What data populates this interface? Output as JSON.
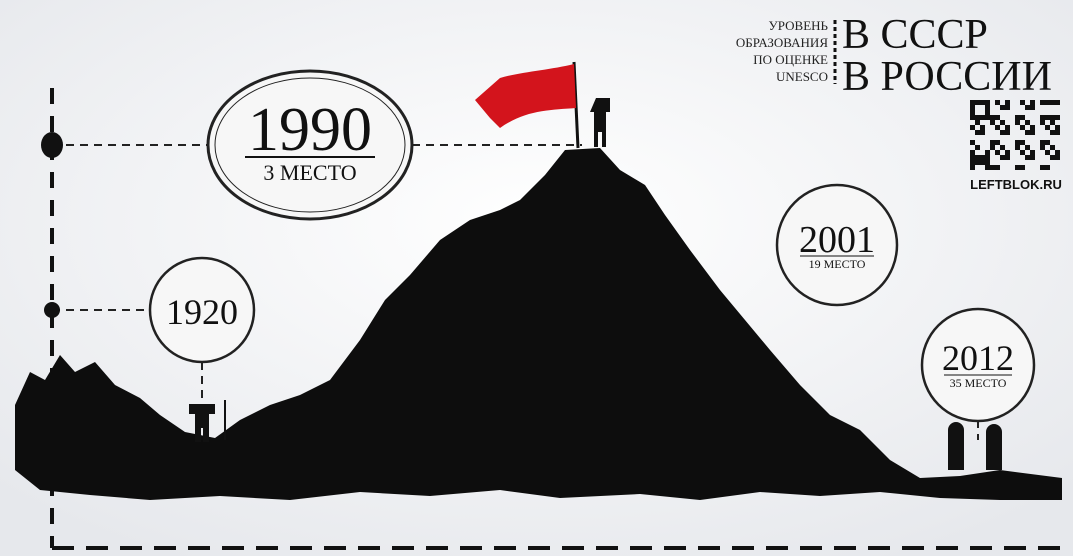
{
  "header": {
    "caption": [
      "УРОВЕНЬ",
      "ОБРАЗОВАНИЯ",
      "ПО ОЦЕНКЕ",
      "UNESCO"
    ],
    "titles": [
      "В СССР",
      "В РОССИИ"
    ],
    "site": "LEFTBLOK.RU"
  },
  "milestones": [
    {
      "year": "1990",
      "rank": "3 МЕСТО"
    },
    {
      "year": "1920"
    },
    {
      "year": "2001",
      "rank": "19 МЕСТО"
    },
    {
      "year": "2012",
      "rank": "35 МЕСТО"
    }
  ]
}
